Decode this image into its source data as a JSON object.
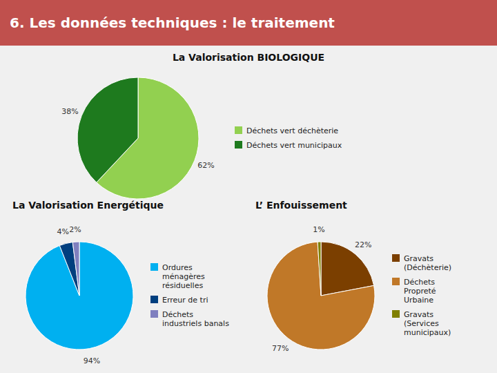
{
  "title": "6. Les données techniques : le traitement",
  "chart_data": [
    {
      "type": "pie",
      "title": "La Valorisation BIOLOGIQUE",
      "categories": [
        "Déchets vert déchèterie",
        "Déchets vert municipaux"
      ],
      "values": [
        62,
        38
      ],
      "value_labels": [
        "62%",
        "38%"
      ],
      "colors": [
        "#92d050",
        "#1e7a1e"
      ],
      "data_labels": true,
      "legend": "right"
    },
    {
      "type": "pie",
      "title": "La Valorisation Energétique",
      "categories": [
        "Ordures\nménagères\nrésiduelles",
        "Erreur de tri",
        "Déchets\nindustriels banals"
      ],
      "values": [
        94,
        4,
        2
      ],
      "value_labels": [
        "94%",
        "4%",
        "2%"
      ],
      "colors": [
        "#00b0f0",
        "#003f7f",
        "#7f7fbf"
      ],
      "data_labels": true,
      "legend": "right"
    },
    {
      "type": "pie",
      "title": "L’ Enfouissement",
      "categories": [
        "Gravats\n(Déchèterie)",
        "Déchets\nPropreté\nUrbaine",
        "Gravats\n(Services\nmunicipaux)"
      ],
      "values": [
        22,
        77,
        1
      ],
      "value_labels": [
        "22%",
        "77%",
        "1%"
      ],
      "colors": [
        "#7b3f00",
        "#c07828",
        "#808000"
      ],
      "data_labels": true,
      "legend": "right"
    }
  ]
}
